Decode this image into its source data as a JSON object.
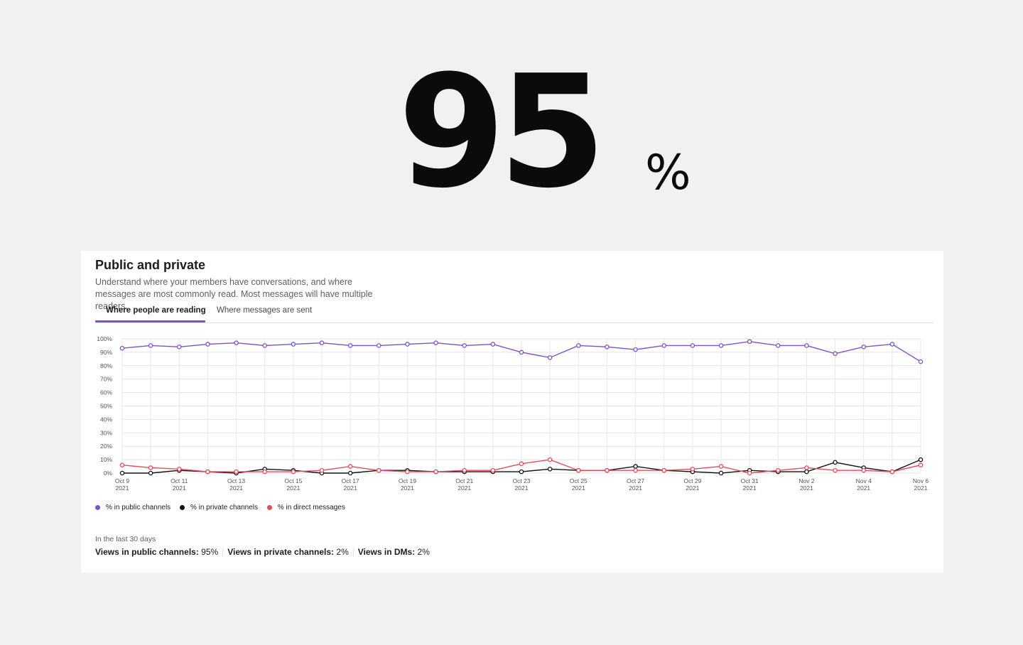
{
  "hero": {
    "number": "95",
    "unit": "%"
  },
  "card": {
    "title": "Public and private",
    "description": "Understand where your members have conversations, and where messages are most commonly read. Most messages will have multiple readers.",
    "tabs": [
      {
        "label": "Where people are reading",
        "active": true
      },
      {
        "label": "Where messages are sent",
        "active": false
      }
    ],
    "period_label": "In the last 30 days",
    "stats": [
      {
        "label": "Views in public channels:",
        "value": "95%"
      },
      {
        "label": "Views in private channels:",
        "value": "2%"
      },
      {
        "label": "Views in DMs:",
        "value": "2%"
      }
    ]
  },
  "chart_data": {
    "type": "line",
    "x": [
      "Oct 9",
      "Oct 10",
      "Oct 11",
      "Oct 12",
      "Oct 13",
      "Oct 14",
      "Oct 15",
      "Oct 16",
      "Oct 17",
      "Oct 18",
      "Oct 19",
      "Oct 20",
      "Oct 21",
      "Oct 22",
      "Oct 23",
      "Oct 24",
      "Oct 25",
      "Oct 26",
      "Oct 27",
      "Oct 28",
      "Oct 29",
      "Oct 30",
      "Oct 31",
      "Nov 1",
      "Nov 2",
      "Nov 3",
      "Nov 4",
      "Nov 5",
      "Nov 6"
    ],
    "tick_labels": [
      {
        "label": "Oct 9",
        "year": "2021"
      },
      {
        "label": "Oct 11",
        "year": "2021"
      },
      {
        "label": "Oct 13",
        "year": "2021"
      },
      {
        "label": "Oct 15",
        "year": "2021"
      },
      {
        "label": "Oct 17",
        "year": "2021"
      },
      {
        "label": "Oct 19",
        "year": "2021"
      },
      {
        "label": "Oct 21",
        "year": "2021"
      },
      {
        "label": "Oct 23",
        "year": "2021"
      },
      {
        "label": "Oct 25",
        "year": "2021"
      },
      {
        "label": "Oct 27",
        "year": "2021"
      },
      {
        "label": "Oct 29",
        "year": "2021"
      },
      {
        "label": "Oct 31",
        "year": "2021"
      },
      {
        "label": "Nov 2",
        "year": "2021"
      },
      {
        "label": "Nov 4",
        "year": "2021"
      },
      {
        "label": "Nov 6",
        "year": "2021"
      }
    ],
    "y_ticks": [
      "0%",
      "10%",
      "20%",
      "30%",
      "40%",
      "50%",
      "60%",
      "70%",
      "80%",
      "90%",
      "100%"
    ],
    "ylim": [
      0,
      100
    ],
    "grid": true,
    "legend_position": "bottom-left",
    "series": [
      {
        "name": "% in public channels",
        "color": "#7c52cc",
        "values": [
          93,
          95,
          94,
          96,
          97,
          95,
          96,
          97,
          95,
          95,
          96,
          97,
          95,
          96,
          90,
          86,
          95,
          94,
          92,
          95,
          95,
          95,
          98,
          95,
          95,
          89,
          94,
          96,
          83
        ]
      },
      {
        "name": "% in private channels",
        "color": "#111111",
        "values": [
          0,
          0,
          2,
          1,
          0,
          3,
          2,
          0,
          0,
          2,
          2,
          1,
          1,
          1,
          1,
          3,
          2,
          2,
          5,
          2,
          1,
          0,
          2,
          1,
          1,
          8,
          4,
          1,
          10
        ]
      },
      {
        "name": "% in direct messages",
        "color": "#e8495b",
        "values": [
          6,
          4,
          3,
          1,
          1,
          1,
          1,
          2,
          5,
          2,
          1,
          1,
          2,
          2,
          7,
          10,
          2,
          2,
          2,
          2,
          3,
          5,
          0,
          2,
          4,
          2,
          2,
          1,
          6
        ]
      }
    ]
  }
}
